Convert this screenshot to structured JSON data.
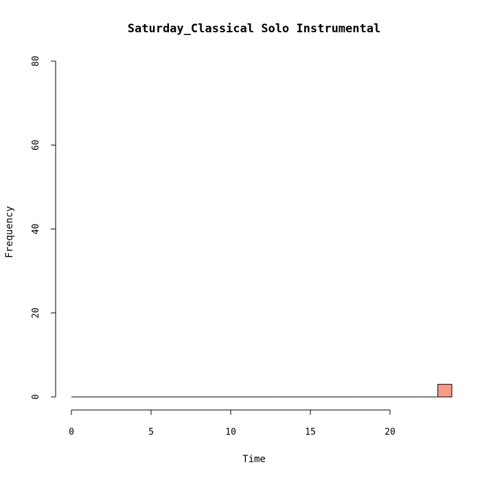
{
  "chart_data": {
    "type": "bar",
    "title": "Saturday_Classical Solo Instrumental",
    "xlabel": "Time",
    "ylabel": "Frequency",
    "bin_width": 1,
    "bin_starts": [
      0,
      1,
      2,
      3,
      4,
      5,
      6,
      7,
      8,
      9,
      10,
      11,
      12,
      13,
      14,
      15,
      16,
      17,
      18,
      19,
      20,
      21,
      22,
      23
    ],
    "values": [
      0,
      0,
      0,
      0,
      0,
      0,
      0,
      0,
      0,
      0,
      0,
      0,
      0,
      0,
      0,
      0,
      0,
      0,
      0,
      0,
      0,
      0,
      0,
      3
    ],
    "xlim": [
      0,
      24
    ],
    "ylim": [
      0,
      80
    ],
    "x_ticks": [
      0,
      5,
      10,
      15,
      20
    ],
    "x_tick_labels": [
      "0",
      "5",
      "10",
      "15",
      "20"
    ],
    "y_ticks": [
      0,
      20,
      40,
      60,
      80
    ],
    "y_tick_labels": [
      "0",
      "20",
      "40",
      "60",
      "80"
    ],
    "bar_color": "#FA9A85",
    "grid": false,
    "legend": "none"
  }
}
